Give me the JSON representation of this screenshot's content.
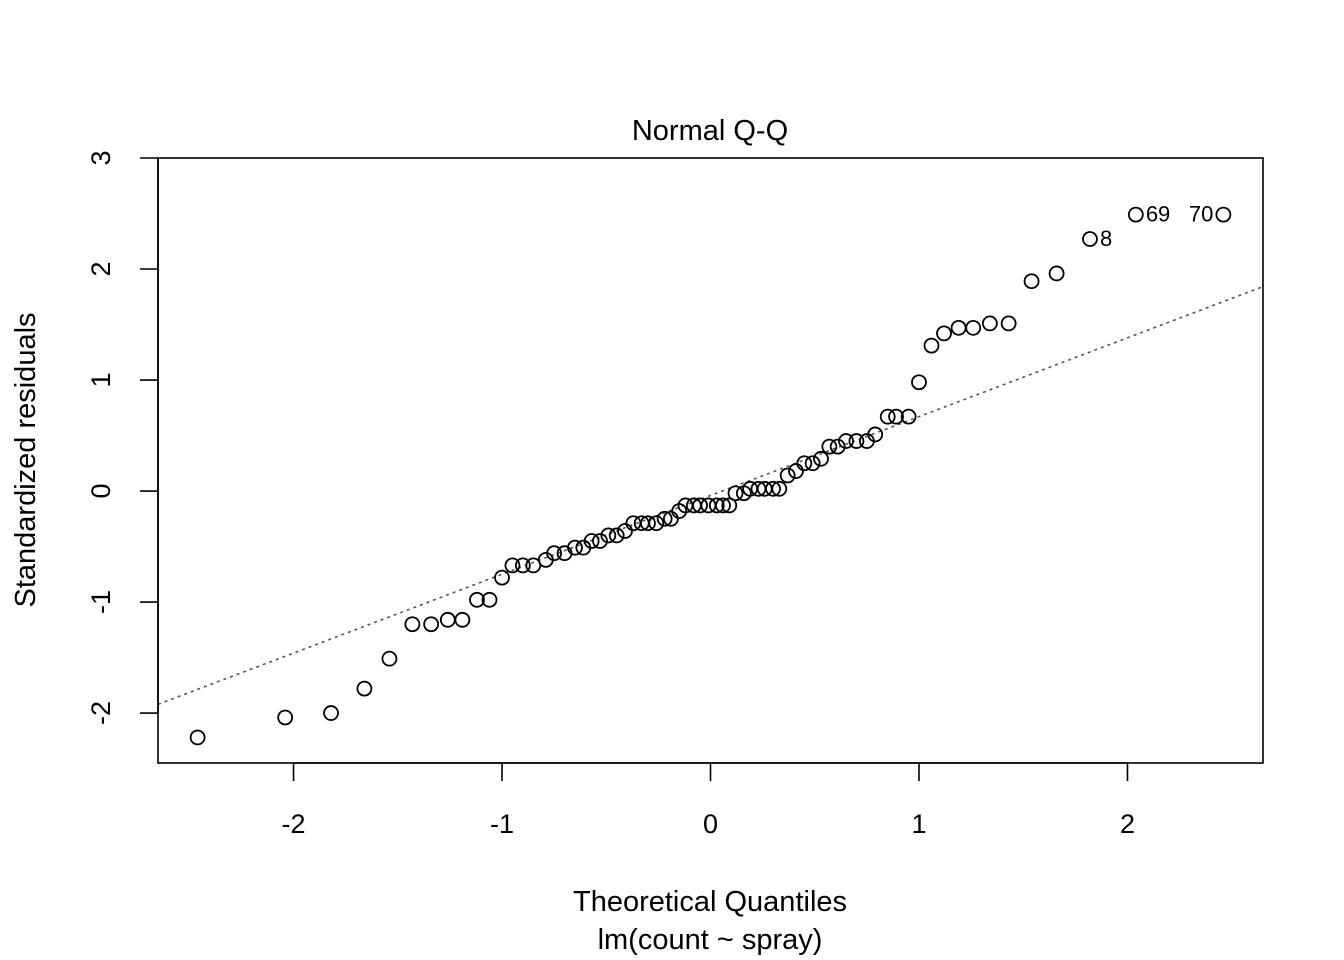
{
  "chart_data": {
    "type": "scatter",
    "title": "Normal Q-Q",
    "xlabel": "Theoretical Quantiles",
    "xlabel2": "lm(count ~ spray)",
    "ylabel": "Standardized residuals",
    "xlim": [
      -2.65,
      2.65
    ],
    "ylim": [
      -2.45,
      3.0
    ],
    "xticks": [
      -2,
      -1,
      0,
      1,
      2
    ],
    "xtick_labels": [
      "-2",
      "-1",
      "0",
      "1",
      "2"
    ],
    "yticks": [
      -2,
      -1,
      0,
      1,
      2,
      3
    ],
    "ytick_labels": [
      "-2",
      "-1",
      "0",
      "1",
      "2",
      "3"
    ],
    "grid": false,
    "reference_line": {
      "style": "dotted",
      "color": "#555555",
      "intercept": -0.04,
      "slope": 0.71
    },
    "series": [
      {
        "x": [
          -2.46,
          -2.04,
          -1.82,
          -1.66,
          -1.54,
          -1.43,
          -1.34,
          -1.26,
          -1.19,
          -1.12,
          -1.06,
          -1.0,
          -0.95,
          -0.9,
          -0.85,
          -0.79,
          -0.75,
          -0.7,
          -0.65,
          -0.61,
          -0.57,
          -0.53,
          -0.49,
          -0.45,
          -0.41,
          -0.37,
          -0.33,
          -0.3,
          -0.26,
          -0.22,
          -0.19,
          -0.15,
          -0.12,
          -0.08,
          -0.05,
          -0.01,
          0.03,
          0.06,
          0.09,
          0.12,
          0.16,
          0.19,
          0.23,
          0.26,
          0.3,
          0.33,
          0.37,
          0.41,
          0.45,
          0.49,
          0.53,
          0.57,
          0.61,
          0.65,
          0.7,
          0.75,
          0.79,
          0.85,
          0.89,
          0.95,
          1.0,
          1.06,
          1.12,
          1.19,
          1.26,
          1.34,
          1.43,
          1.54,
          1.66,
          1.82,
          2.04,
          2.46
        ],
        "y": [
          -2.22,
          -2.04,
          -2.0,
          -1.78,
          -1.51,
          -1.2,
          -1.2,
          -1.16,
          -1.16,
          -0.98,
          -0.98,
          -0.78,
          -0.67,
          -0.67,
          -0.67,
          -0.62,
          -0.56,
          -0.56,
          -0.51,
          -0.51,
          -0.45,
          -0.45,
          -0.4,
          -0.4,
          -0.36,
          -0.29,
          -0.29,
          -0.29,
          -0.29,
          -0.25,
          -0.25,
          -0.18,
          -0.13,
          -0.13,
          -0.13,
          -0.13,
          -0.13,
          -0.13,
          -0.13,
          -0.02,
          -0.02,
          0.02,
          0.02,
          0.02,
          0.02,
          0.02,
          0.14,
          0.18,
          0.25,
          0.25,
          0.29,
          0.4,
          0.4,
          0.45,
          0.45,
          0.45,
          0.51,
          0.67,
          0.67,
          0.67,
          0.98,
          1.31,
          1.42,
          1.47,
          1.47,
          1.51,
          1.51,
          1.89,
          1.96,
          2.27,
          2.49,
          2.49
        ]
      }
    ],
    "point_labels": [
      {
        "text": "8",
        "x": 1.82,
        "y": 2.27
      },
      {
        "text": "69",
        "x": 2.04,
        "y": 2.49
      },
      {
        "text": "70",
        "x": 2.46,
        "y": 2.49
      }
    ]
  }
}
